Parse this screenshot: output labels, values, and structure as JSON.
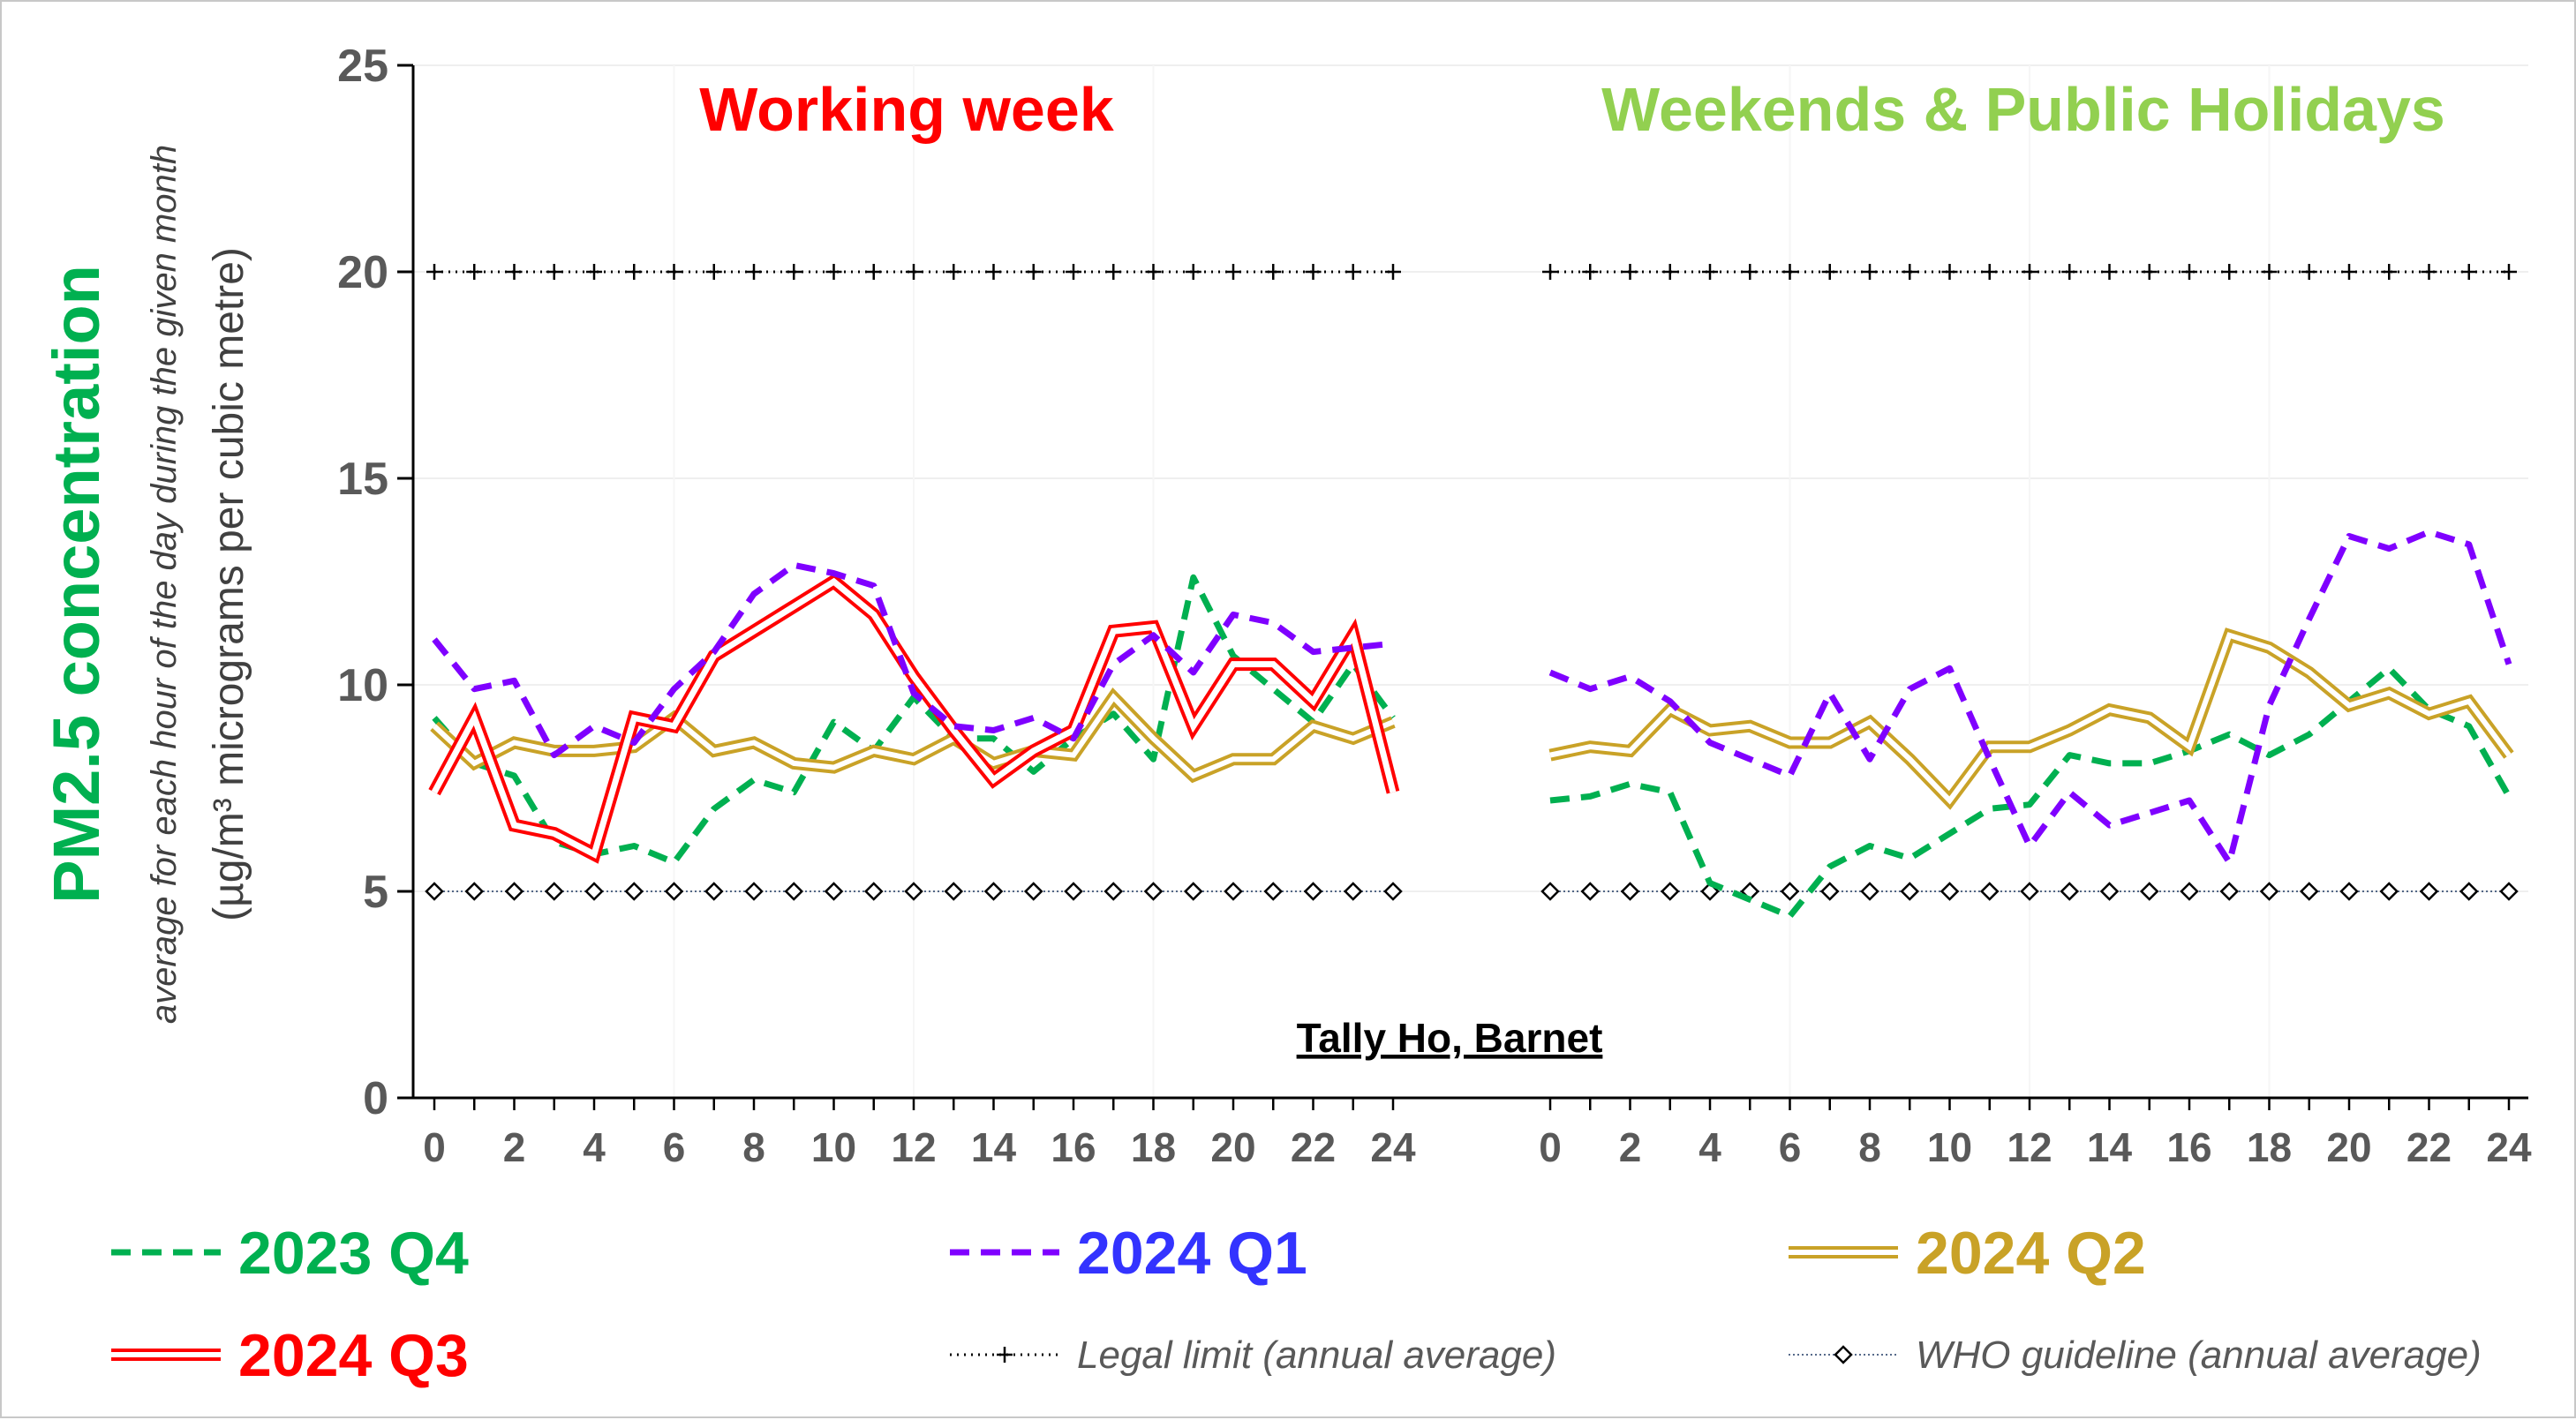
{
  "chart_data": {
    "type": "line",
    "location_label": "Tally Ho, Barnet",
    "ylabel_main": "PM2.5 concentration",
    "ylabel_sub1": "average for each hour of the day during the given month",
    "ylabel_sub2": "(µg/m³ micrograms per cubic metre)",
    "ylim": [
      0,
      25
    ],
    "yticks": [
      0,
      5,
      10,
      15,
      20,
      25
    ],
    "xticks": [
      0,
      2,
      4,
      6,
      8,
      10,
      12,
      14,
      16,
      18,
      20,
      22,
      24
    ],
    "grid": true,
    "legend_position": "bottom",
    "panels": [
      {
        "title": "Working week",
        "title_color": "#ff0000",
        "series": [
          {
            "name": "2023 Q4",
            "values": [
              9.2,
              8.1,
              7.8,
              6.2,
              5.9,
              6.1,
              5.7,
              7.0,
              7.7,
              7.4,
              9.1,
              8.4,
              9.7,
              8.7,
              8.7,
              7.9,
              8.7,
              9.3,
              8.2,
              12.6,
              10.7,
              9.9,
              9.1,
              10.5,
              9.2
            ]
          },
          {
            "name": "2024 Q1",
            "values": [
              11.1,
              9.9,
              10.1,
              8.3,
              9.0,
              8.6,
              9.9,
              10.8,
              12.2,
              12.9,
              12.7,
              12.4,
              9.8,
              9.0,
              8.9,
              9.2,
              8.7,
              10.5,
              11.2,
              10.3,
              11.7,
              11.5,
              10.8,
              10.9,
              11.0
            ]
          },
          {
            "name": "2024 Q2",
            "values": [
              9.0,
              8.1,
              8.6,
              8.4,
              8.4,
              8.5,
              9.2,
              8.4,
              8.6,
              8.1,
              8.0,
              8.4,
              8.2,
              8.7,
              8.1,
              8.4,
              8.3,
              9.7,
              8.7,
              7.8,
              8.2,
              8.2,
              9.0,
              8.7,
              9.1
            ]
          },
          {
            "name": "2024 Q3",
            "values": [
              7.4,
              9.2,
              6.6,
              6.4,
              5.9,
              9.2,
              9.0,
              10.7,
              11.3,
              11.9,
              12.5,
              11.7,
              10.2,
              8.9,
              7.7,
              8.4,
              8.9,
              11.3,
              11.4,
              9.0,
              10.5,
              10.5,
              9.6,
              11.2,
              7.4
            ]
          }
        ]
      },
      {
        "title": "Weekends & Public Holidays",
        "title_color": "#92d050",
        "series": [
          {
            "name": "2023 Q4",
            "values": [
              7.2,
              7.3,
              7.6,
              7.4,
              5.2,
              4.8,
              4.4,
              5.6,
              6.1,
              5.8,
              6.4,
              7.0,
              7.1,
              8.3,
              8.1,
              8.1,
              8.4,
              8.8,
              8.3,
              8.8,
              9.6,
              10.4,
              9.4,
              9.0,
              7.3
            ]
          },
          {
            "name": "2024 Q1",
            "values": [
              10.3,
              9.9,
              10.2,
              9.6,
              8.6,
              8.2,
              7.8,
              9.8,
              8.2,
              9.9,
              10.4,
              8.2,
              6.1,
              7.4,
              6.6,
              6.9,
              7.2,
              5.7,
              9.5,
              11.6,
              13.6,
              13.3,
              13.7,
              13.4,
              10.5
            ]
          },
          {
            "name": "2024 Q2",
            "values": [
              8.3,
              8.5,
              8.4,
              9.4,
              8.9,
              9.0,
              8.6,
              8.6,
              9.1,
              8.2,
              7.2,
              8.5,
              8.5,
              8.9,
              9.4,
              9.2,
              8.5,
              11.2,
              10.9,
              10.3,
              9.5,
              9.8,
              9.3,
              9.6,
              8.3
            ]
          }
        ]
      }
    ],
    "reference_lines": [
      {
        "name": "Legal limit (annual average)",
        "value": 20
      },
      {
        "name": "WHO guideline (annual average)",
        "value": 5
      }
    ],
    "legend": [
      {
        "label": "2023 Q4",
        "color": "#00b050"
      },
      {
        "label": "2024 Q1",
        "color": "#3333ff"
      },
      {
        "label": "2024 Q2",
        "color": "#c9a227"
      },
      {
        "label": "2024 Q3",
        "color": "#ff0000"
      },
      {
        "label": "Legal limit (annual average)",
        "color": "#595959"
      },
      {
        "label": "WHO guideline (annual average)",
        "color": "#595959"
      }
    ],
    "series_colors": {
      "2023 Q4": "#00b050",
      "2024 Q1": "#7f00ff",
      "2024 Q2": "#c9a227",
      "2024 Q3": "#ff0000"
    },
    "ylabel_main_color": "#00b050"
  }
}
